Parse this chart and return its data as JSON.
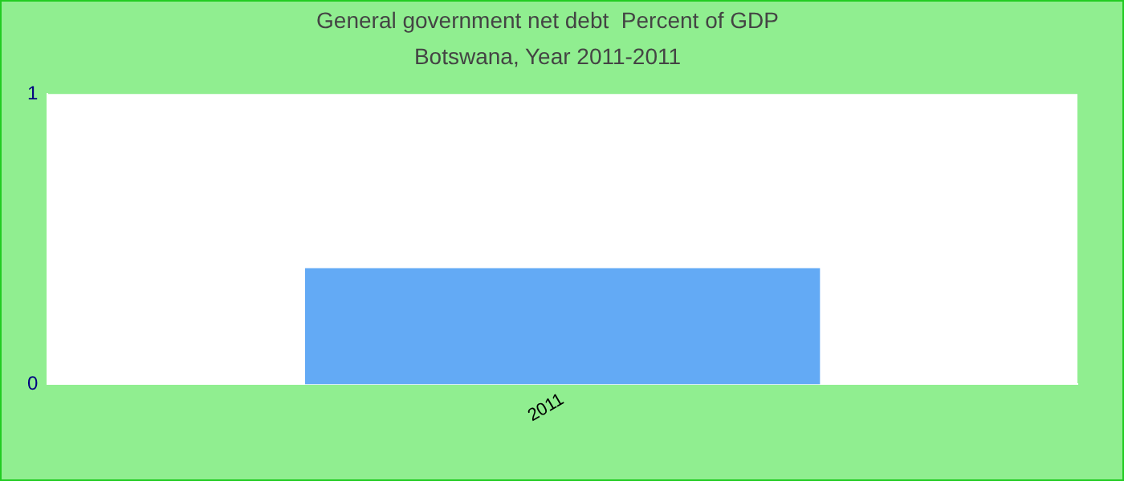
{
  "chart_data": {
    "type": "bar",
    "title": "General government net debt  Percent of GDP",
    "subtitle": "Botswana, Year 2011-2011",
    "categories": [
      "2011"
    ],
    "values": [
      0.4
    ],
    "color": "#63aaf5",
    "ylim": [
      0,
      1
    ],
    "yticks": [
      0,
      1
    ],
    "grid": false,
    "legend": false
  }
}
